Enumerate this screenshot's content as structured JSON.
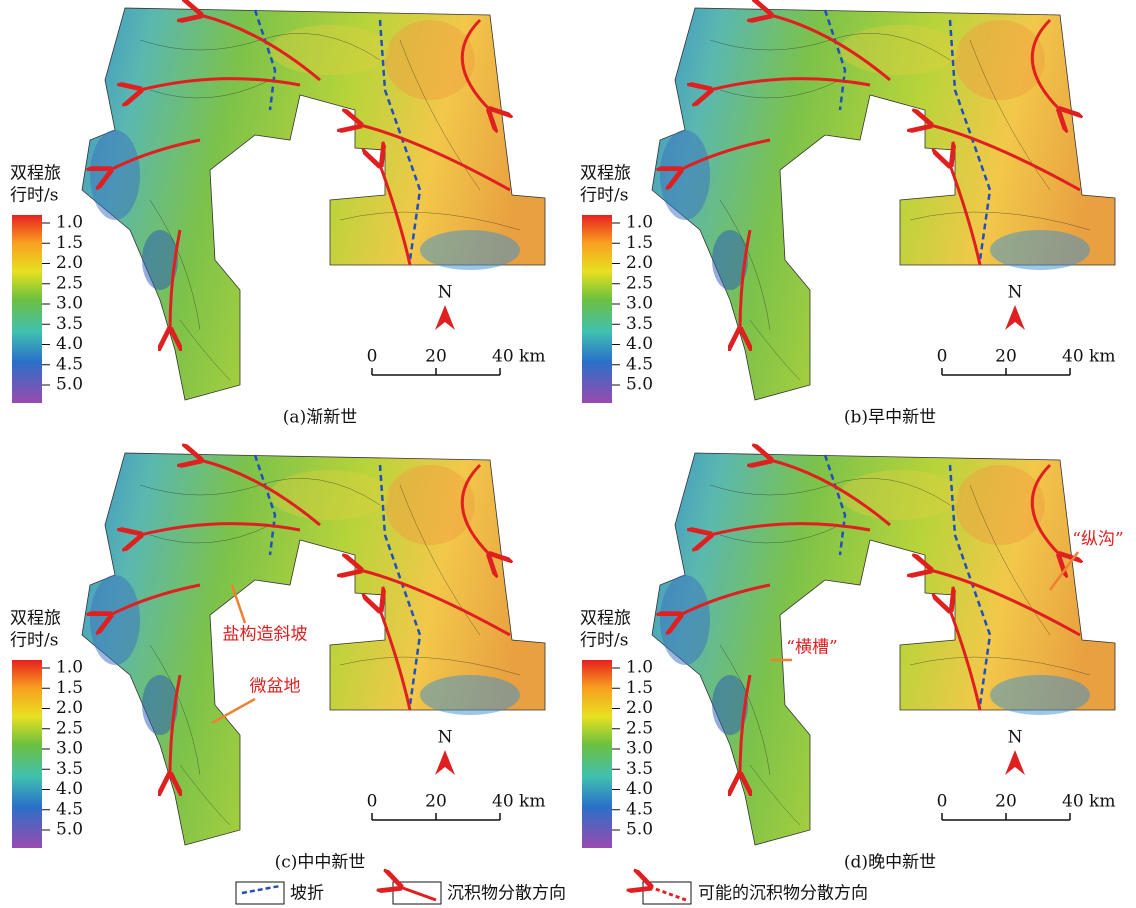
{
  "panels": [
    {
      "caption": "(a)渐新世",
      "colorbar": {
        "title": [
          "双程旅",
          "行时/s"
        ],
        "ticks": [
          "1.0",
          "1.5",
          "2.0",
          "2.5",
          "3.0",
          "3.5",
          "4.0",
          "4.5",
          "5.0"
        ]
      },
      "scale": {
        "north": "N",
        "labels": [
          "0",
          "20",
          "40 km"
        ]
      },
      "annotations": []
    },
    {
      "caption": "(b)早中新世",
      "colorbar": {
        "title": [
          "双程旅",
          "行时/s"
        ],
        "ticks": [
          "1.0",
          "1.5",
          "2.0",
          "2.5",
          "3.0",
          "3.5",
          "4.0",
          "4.5",
          "5.0"
        ]
      },
      "scale": {
        "north": "N",
        "labels": [
          "0",
          "20",
          "40 km"
        ]
      },
      "annotations": []
    },
    {
      "caption": "(c)中中新世",
      "colorbar": {
        "title": [
          "双程旅",
          "行时/s"
        ],
        "ticks": [
          "1.0",
          "1.5",
          "2.0",
          "2.5",
          "3.0",
          "3.5",
          "4.0",
          "4.5",
          "5.0"
        ]
      },
      "scale": {
        "north": "N",
        "labels": [
          "0",
          "20",
          "40 km"
        ]
      },
      "annotations": [
        "盐构造斜坡",
        "微盆地"
      ]
    },
    {
      "caption": "(d)晚中新世",
      "colorbar": {
        "title": [
          "双程旅",
          "行时/s"
        ],
        "ticks": [
          "1.0",
          "1.5",
          "2.0",
          "2.5",
          "3.0",
          "3.5",
          "4.0",
          "4.5",
          "5.0"
        ]
      },
      "scale": {
        "north": "N",
        "labels": [
          "0",
          "20",
          "40 km"
        ]
      },
      "annotations": [
        "“横槽”",
        "“纵沟”"
      ]
    }
  ],
  "legend": [
    "坡折",
    "沉积物分散方向",
    "可能的沉积物分散方向"
  ]
}
